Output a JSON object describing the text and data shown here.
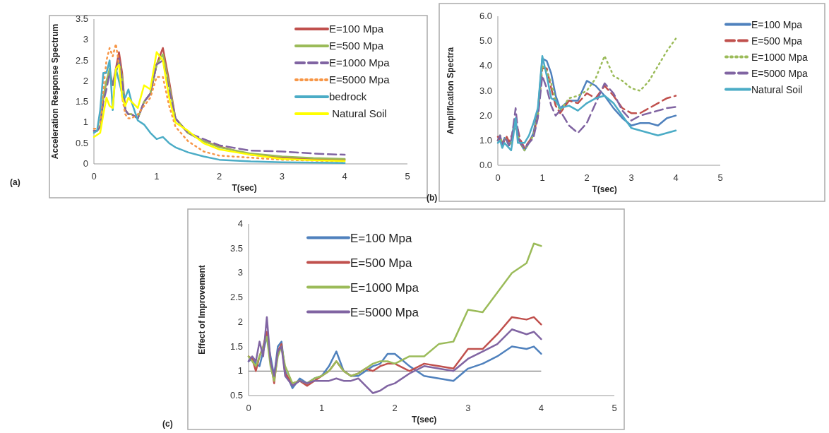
{
  "chart_data": [
    {
      "type": "line",
      "xlabel": "T(sec)",
      "ylabel": "Acceleration Response Spectrum",
      "annotations": [
        "(a)"
      ],
      "xlim": [
        0,
        5
      ],
      "xticks": [
        0,
        1,
        2,
        3,
        4,
        5
      ],
      "ylim": [
        0,
        3.5
      ],
      "yticks": [
        0,
        0.5,
        1,
        1.5,
        2,
        2.5,
        3,
        3.5
      ],
      "grid": false,
      "legend": "top right",
      "x": [
        0,
        0.05,
        0.1,
        0.15,
        0.2,
        0.25,
        0.3,
        0.35,
        0.4,
        0.45,
        0.5,
        0.55,
        0.6,
        0.7,
        0.8,
        0.9,
        1.0,
        1.1,
        1.2,
        1.3,
        1.5,
        1.75,
        2.0,
        2.5,
        3.0,
        3.5,
        4.0
      ],
      "series": [
        {
          "name": "E=100 Mpa",
          "color": "#c0504d",
          "line_style": "solid",
          "values": [
            0.8,
            0.8,
            0.9,
            1.6,
            2.0,
            2.2,
            1.9,
            2.3,
            2.7,
            2.2,
            1.3,
            1.2,
            1.2,
            1.1,
            1.5,
            1.7,
            2.4,
            2.8,
            2.0,
            1.1,
            0.75,
            0.55,
            0.42,
            0.22,
            0.15,
            0.12,
            0.1
          ]
        },
        {
          "name": "E=500 Mpa",
          "color": "#9bbb59",
          "line_style": "solid",
          "values": [
            0.8,
            0.8,
            0.9,
            1.6,
            2.0,
            2.3,
            1.9,
            2.2,
            2.5,
            2.1,
            1.3,
            1.2,
            1.2,
            1.1,
            1.5,
            1.7,
            2.4,
            2.65,
            1.9,
            1.1,
            0.75,
            0.55,
            0.4,
            0.25,
            0.18,
            0.14,
            0.12
          ]
        },
        {
          "name": "E=1000 Mpa",
          "color": "#8064a2",
          "line_style": "dashed",
          "values": [
            0.8,
            0.8,
            0.9,
            1.5,
            1.8,
            2.2,
            1.9,
            2.2,
            2.55,
            2.0,
            1.3,
            1.2,
            1.2,
            1.1,
            1.5,
            1.7,
            2.4,
            2.5,
            1.8,
            1.1,
            0.75,
            0.6,
            0.45,
            0.32,
            0.3,
            0.25,
            0.22
          ]
        },
        {
          "name": "E=5000 Mpa",
          "color": "#f79646",
          "line_style": "dotted",
          "values": [
            0.85,
            0.85,
            1.0,
            1.8,
            2.5,
            2.8,
            2.6,
            2.9,
            2.4,
            1.6,
            1.2,
            1.1,
            1.1,
            1.2,
            1.4,
            1.6,
            2.1,
            2.1,
            1.4,
            0.9,
            0.55,
            0.3,
            0.2,
            0.15,
            0.1,
            0.08,
            0.06
          ]
        },
        {
          "name": "bedrock",
          "color": "#4bacc6",
          "line_style": "solid",
          "values": [
            0.75,
            0.8,
            1.3,
            2.2,
            2.2,
            2.5,
            1.3,
            2.3,
            2.0,
            1.7,
            1.6,
            1.8,
            1.5,
            1.05,
            0.95,
            0.75,
            0.6,
            0.65,
            0.5,
            0.4,
            0.28,
            0.18,
            0.1,
            0.06,
            0.04,
            0.03,
            0.02
          ]
        },
        {
          "name": " Natural Soil",
          "color": "#ffff00",
          "line_style": "solid",
          "values": [
            0.65,
            0.7,
            0.75,
            1.2,
            1.6,
            1.4,
            1.35,
            2.3,
            2.4,
            1.6,
            1.4,
            1.6,
            1.5,
            1.35,
            1.9,
            1.8,
            2.7,
            2.5,
            1.6,
            1.0,
            0.8,
            0.5,
            0.35,
            0.22,
            0.12,
            0.09,
            0.07
          ]
        }
      ]
    },
    {
      "type": "line",
      "xlabel": "T(sec)",
      "ylabel": "Amplification Spectra",
      "annotations": [
        "(b)"
      ],
      "xlim": [
        0,
        5
      ],
      "xticks": [
        0,
        1,
        2,
        3,
        4,
        5
      ],
      "ylim": [
        0,
        6
      ],
      "yticks": [
        {
          "value": 0,
          "label": "0.0"
        },
        {
          "value": 1,
          "label": "1.0"
        },
        {
          "value": 2,
          "label": "2.0"
        },
        {
          "value": 3,
          "label": "3.0"
        },
        {
          "value": 4,
          "label": "4.0"
        },
        {
          "value": 5,
          "label": "5.0"
        },
        {
          "value": 6,
          "label": "6.0"
        }
      ],
      "grid": false,
      "legend": "right",
      "x": [
        0,
        0.05,
        0.1,
        0.15,
        0.2,
        0.25,
        0.3,
        0.35,
        0.4,
        0.45,
        0.5,
        0.6,
        0.7,
        0.8,
        0.9,
        1.0,
        1.1,
        1.2,
        1.3,
        1.4,
        1.6,
        1.8,
        2.0,
        2.2,
        2.4,
        2.6,
        2.8,
        3.0,
        3.2,
        3.4,
        3.6,
        3.8,
        4.0
      ],
      "series": [
        {
          "name": "E=100 Mpa",
          "color": "#4f81bd",
          "line_style": "solid",
          "values": [
            1.0,
            1.2,
            0.8,
            1.1,
            1.0,
            0.8,
            1.0,
            1.5,
            1.8,
            1.2,
            0.9,
            0.6,
            0.9,
            1.3,
            2.2,
            4.3,
            4.2,
            3.7,
            2.8,
            2.3,
            2.6,
            2.6,
            3.4,
            3.2,
            2.8,
            2.3,
            1.9,
            1.6,
            1.7,
            1.7,
            1.6,
            1.9,
            2.0
          ]
        },
        {
          "name": "E=500 Mpa",
          "color": "#c0504d",
          "line_style": "dashed",
          "values": [
            1.15,
            1.05,
            0.95,
            0.95,
            1.15,
            0.95,
            1.15,
            1.35,
            1.55,
            1.45,
            1.05,
            0.7,
            0.95,
            1.2,
            2.0,
            3.9,
            3.9,
            3.1,
            2.4,
            2.1,
            2.6,
            2.5,
            2.9,
            2.7,
            3.2,
            2.8,
            2.3,
            2.1,
            2.1,
            2.3,
            2.5,
            2.7,
            2.8
          ]
        },
        {
          "name": "E=1000 Mpa",
          "color": "#9bbb59",
          "line_style": "dotted",
          "values": [
            1.0,
            1.2,
            0.8,
            1.1,
            1.0,
            0.8,
            0.9,
            1.4,
            1.7,
            1.2,
            0.9,
            0.6,
            0.9,
            1.2,
            2.0,
            4.0,
            3.8,
            3.3,
            2.6,
            2.2,
            2.7,
            2.8,
            3.0,
            3.5,
            4.4,
            3.6,
            3.4,
            3.1,
            3.0,
            3.4,
            4.0,
            4.6,
            5.1
          ]
        },
        {
          "name": "E=5000 Mpa",
          "color": "#8064a2",
          "line_style": "dashed",
          "values": [
            1.0,
            1.2,
            0.8,
            1.1,
            1.0,
            0.8,
            1.0,
            1.6,
            2.3,
            1.4,
            0.9,
            0.7,
            0.9,
            1.1,
            1.9,
            3.6,
            3.1,
            2.4,
            2.0,
            2.2,
            1.6,
            1.3,
            1.7,
            2.5,
            3.3,
            2.9,
            2.2,
            1.8,
            2.0,
            2.1,
            2.2,
            2.3,
            2.35
          ]
        },
        {
          "name": "Natural Soil",
          "color": "#4bacc6",
          "line_style": "solid",
          "values": [
            0.9,
            1.0,
            0.7,
            0.9,
            0.8,
            0.7,
            0.6,
            1.2,
            1.9,
            0.9,
            0.9,
            0.9,
            1.2,
            1.7,
            2.3,
            4.4,
            3.6,
            2.7,
            2.6,
            2.3,
            2.4,
            2.2,
            2.5,
            2.7,
            2.8,
            2.5,
            2.0,
            1.5,
            1.4,
            1.3,
            1.2,
            1.3,
            1.4
          ]
        }
      ]
    },
    {
      "type": "line",
      "xlabel": "T(sec)",
      "ylabel": "Effect of Improvement",
      "annotations": [
        "(c)"
      ],
      "xlim": [
        0,
        5
      ],
      "xticks": [
        0,
        1,
        2,
        3,
        4,
        5
      ],
      "ylim": [
        0.5,
        4
      ],
      "yticks": [
        0.5,
        1,
        1.5,
        2,
        2.5,
        3,
        3.5,
        4
      ],
      "grid": false,
      "legend": "top",
      "ref_lines": [
        {
          "axis": "y",
          "value": 1,
          "color": "#808080"
        }
      ],
      "x": [
        0,
        0.05,
        0.1,
        0.15,
        0.2,
        0.25,
        0.3,
        0.35,
        0.4,
        0.45,
        0.5,
        0.6,
        0.7,
        0.8,
        0.9,
        1.0,
        1.1,
        1.2,
        1.3,
        1.4,
        1.5,
        1.6,
        1.7,
        1.8,
        1.9,
        2.0,
        2.2,
        2.4,
        2.6,
        2.8,
        3.0,
        3.2,
        3.4,
        3.6,
        3.8,
        3.9,
        4.0
      ],
      "series": [
        {
          "name": "E=100 Mpa",
          "color": "#4f81bd",
          "line_style": "solid",
          "values": [
            1.2,
            1.25,
            1.15,
            1.1,
            1.4,
            1.7,
            1.3,
            0.9,
            1.5,
            1.6,
            1.0,
            0.65,
            0.85,
            0.75,
            0.85,
            0.9,
            1.1,
            1.4,
            1.0,
            0.9,
            0.9,
            1.0,
            1.1,
            1.15,
            1.35,
            1.35,
            1.1,
            0.9,
            0.85,
            0.8,
            1.05,
            1.15,
            1.3,
            1.5,
            1.45,
            1.5,
            1.35
          ]
        },
        {
          "name": "E=500 Mpa",
          "color": "#c0504d",
          "line_style": "solid",
          "values": [
            1.3,
            1.25,
            1.0,
            1.3,
            1.5,
            1.8,
            1.2,
            0.75,
            1.4,
            1.55,
            0.95,
            0.75,
            0.8,
            0.7,
            0.8,
            0.9,
            1.0,
            1.2,
            1.0,
            0.9,
            0.95,
            1.05,
            1.0,
            1.1,
            1.15,
            1.15,
            1.0,
            1.15,
            1.1,
            1.05,
            1.45,
            1.45,
            1.75,
            2.1,
            2.05,
            2.1,
            1.95
          ]
        },
        {
          "name": "E=1000 Mpa",
          "color": "#9bbb59",
          "line_style": "solid",
          "values": [
            1.3,
            1.2,
            1.1,
            1.3,
            1.5,
            1.7,
            1.1,
            0.8,
            1.3,
            1.5,
            1.1,
            0.75,
            0.8,
            0.75,
            0.85,
            0.9,
            1.0,
            1.2,
            1.0,
            0.9,
            0.95,
            1.05,
            1.15,
            1.2,
            1.2,
            1.15,
            1.3,
            1.3,
            1.55,
            1.6,
            2.25,
            2.2,
            2.6,
            3.0,
            3.2,
            3.6,
            3.55
          ]
        },
        {
          "name": "E=5000 Mpa",
          "color": "#8064a2",
          "line_style": "solid",
          "values": [
            1.2,
            1.3,
            1.2,
            1.6,
            1.3,
            2.1,
            1.2,
            0.9,
            1.4,
            1.5,
            0.9,
            0.7,
            0.8,
            0.75,
            0.8,
            0.8,
            0.8,
            0.85,
            0.8,
            0.8,
            0.85,
            0.7,
            0.55,
            0.6,
            0.7,
            0.75,
            0.95,
            1.1,
            1.05,
            1.0,
            1.25,
            1.4,
            1.55,
            1.85,
            1.75,
            1.8,
            1.65
          ]
        }
      ]
    }
  ]
}
